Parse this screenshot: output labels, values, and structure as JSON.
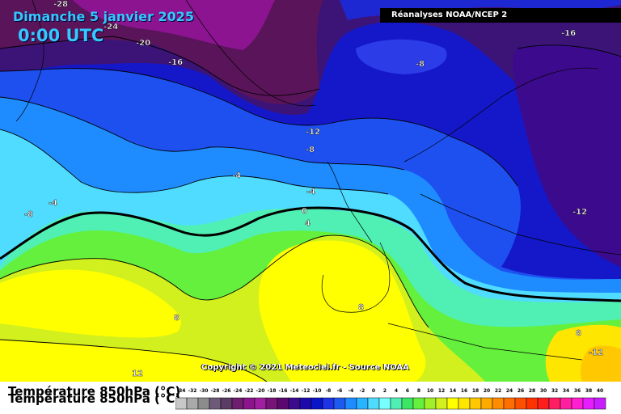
{
  "header": {
    "date": "Dimanche 5 janvier 2025",
    "time": "0:00 UTC",
    "source": "Réanalyses NOAA/NCEP 2"
  },
  "copyright": "Copyright © 2021 Meteociel.fr - Source NOAA",
  "legend": {
    "title": "Température 850hPa (°C)",
    "ticks": [
      "-34",
      "-32",
      "-30",
      "-28",
      "-26",
      "-24",
      "-22",
      "-20",
      "-18",
      "-16",
      "-14",
      "-12",
      "-10",
      "-8",
      "-6",
      "-4",
      "-2",
      "0",
      "2",
      "4",
      "6",
      "8",
      "10",
      "12",
      "14",
      "16",
      "18",
      "20",
      "22",
      "24",
      "26",
      "28",
      "30",
      "32",
      "34",
      "36",
      "38",
      "40"
    ],
    "colors": [
      "#c8c8c8",
      "#aaaaaa",
      "#8c8c8c",
      "#6e5a78",
      "#5a3c64",
      "#6e1e6e",
      "#8c148c",
      "#a01ea0",
      "#781478",
      "#5a0a6e",
      "#3c0a8c",
      "#1e0aaa",
      "#0a14c8",
      "#1e32e6",
      "#1e5af0",
      "#1e8cff",
      "#28b4ff",
      "#50dcff",
      "#78ffff",
      "#50f0b4",
      "#3ce664",
      "#64f03c",
      "#a0f028",
      "#d2f01e",
      "#ffff00",
      "#ffe600",
      "#ffc800",
      "#ffaa00",
      "#ff8c00",
      "#ff6e00",
      "#ff5000",
      "#ff3200",
      "#ff1e1e",
      "#ff1e64",
      "#ff1ea0",
      "#ff1ed2",
      "#e61eff",
      "#c81eff"
    ]
  },
  "contour_labels": [
    "-28",
    "-24",
    "-20",
    "-16",
    "-16",
    "-8",
    "-12",
    "-8",
    "-4",
    "-4",
    "-8",
    "-4",
    "0",
    "4",
    "-12",
    "8",
    "8",
    "12",
    "8",
    "-12"
  ]
}
